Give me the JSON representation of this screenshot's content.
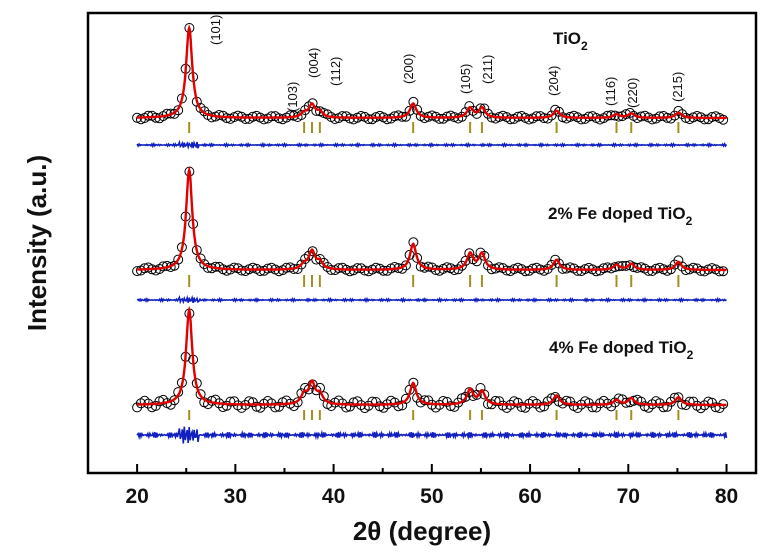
{
  "chart_data": {
    "type": "line",
    "xlabel": "2θ (degree)",
    "ylabel": "Intensity (a.u.)",
    "xlim": [
      15,
      83
    ],
    "x_ticks": [
      20,
      30,
      40,
      50,
      60,
      70,
      80
    ],
    "x_range": [
      20,
      80
    ],
    "grid": false,
    "legend": "none",
    "colors": {
      "observed": "#000000",
      "fit": "#e00000",
      "difference": "#1020c0",
      "bragg": "#a09020"
    },
    "series_names": [
      "TiO2",
      "2% Fe doped TiO2",
      "4% Fe doped TiO2"
    ],
    "series": [
      {
        "label_main": "TiO",
        "label_sub": "2",
        "peaks": [
          [
            25.3,
            1.0
          ],
          [
            37.0,
            0.05
          ],
          [
            37.8,
            0.14
          ],
          [
            38.6,
            0.06
          ],
          [
            48.1,
            0.16
          ],
          [
            53.9,
            0.11
          ],
          [
            55.1,
            0.11
          ],
          [
            62.7,
            0.08
          ],
          [
            68.8,
            0.04
          ],
          [
            70.3,
            0.05
          ],
          [
            75.1,
            0.06
          ]
        ]
      },
      {
        "label_main": "2% Fe doped TiO",
        "label_sub": "2",
        "peaks": [
          [
            25.3,
            1.0
          ],
          [
            37.0,
            0.05
          ],
          [
            37.8,
            0.18
          ],
          [
            38.6,
            0.07
          ],
          [
            48.1,
            0.26
          ],
          [
            53.9,
            0.16
          ],
          [
            55.1,
            0.16
          ],
          [
            62.7,
            0.1
          ],
          [
            68.8,
            0.05
          ],
          [
            70.3,
            0.06
          ],
          [
            75.1,
            0.08
          ]
        ]
      },
      {
        "label_main": "4% Fe doped TiO",
        "label_sub": "2",
        "peaks": [
          [
            25.3,
            1.0
          ],
          [
            37.0,
            0.1
          ],
          [
            37.8,
            0.22
          ],
          [
            38.6,
            0.1
          ],
          [
            48.1,
            0.23
          ],
          [
            53.9,
            0.16
          ],
          [
            55.1,
            0.14
          ],
          [
            62.7,
            0.1
          ],
          [
            68.8,
            0.05
          ],
          [
            70.3,
            0.07
          ],
          [
            75.1,
            0.08
          ]
        ]
      }
    ],
    "reflections": [
      {
        "hkl": "(101)",
        "x": 25.3
      },
      {
        "hkl": "(103)",
        "x": 37.0
      },
      {
        "hkl": "(004)",
        "x": 37.8
      },
      {
        "hkl": "(112)",
        "x": 38.6
      },
      {
        "hkl": "(200)",
        "x": 48.1
      },
      {
        "hkl": "(105)",
        "x": 53.9
      },
      {
        "hkl": "(211)",
        "x": 55.1
      },
      {
        "hkl": "(204)",
        "x": 62.7
      },
      {
        "hkl": "(116)",
        "x": 68.8
      },
      {
        "hkl": "(220)",
        "x": 70.3
      },
      {
        "hkl": "(215)",
        "x": 75.1
      }
    ]
  }
}
